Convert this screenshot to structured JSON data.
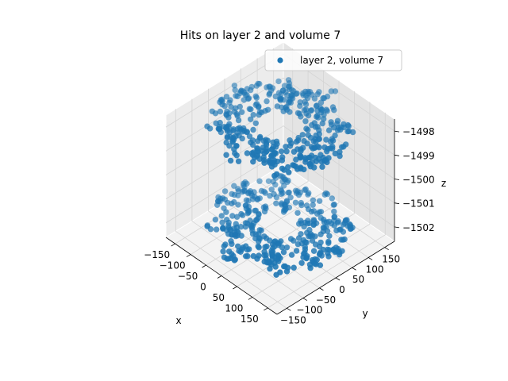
{
  "chart_data": {
    "type": "scatter",
    "projection": "3d",
    "title": "Hits on layer 2 and volume 7",
    "xlabel": "x",
    "ylabel": "y",
    "zlabel": "z",
    "xlim": [
      -180,
      180
    ],
    "ylim": [
      -180,
      180
    ],
    "zlim": [
      -1502.6,
      -1497.5
    ],
    "xticks": [
      -150,
      -100,
      -50,
      0,
      50,
      100,
      150
    ],
    "yticks": [
      -150,
      -100,
      -50,
      0,
      50,
      100,
      150
    ],
    "zticks": [
      -1502,
      -1501,
      -1500,
      -1499,
      -1498
    ],
    "xtick_labels": [
      "−150",
      "−100",
      "−50",
      "0",
      "50",
      "100",
      "150"
    ],
    "ytick_labels": [
      "−150",
      "−100",
      "−50",
      "0",
      "50",
      "100",
      "150"
    ],
    "ztick_labels": [
      "−1502",
      "−1501",
      "−1500",
      "−1499",
      "−1498"
    ],
    "grid": true,
    "legend_position": "top-right",
    "series": [
      {
        "name": "layer 2, volume 7",
        "color": "#1f77b4",
        "disks": [
          {
            "z": -1497.9,
            "r_min": 55,
            "r_max": 170,
            "approx_points": 380
          },
          {
            "z": -1502.0,
            "r_min": 55,
            "r_max": 170,
            "approx_points": 380
          }
        ]
      }
    ]
  }
}
